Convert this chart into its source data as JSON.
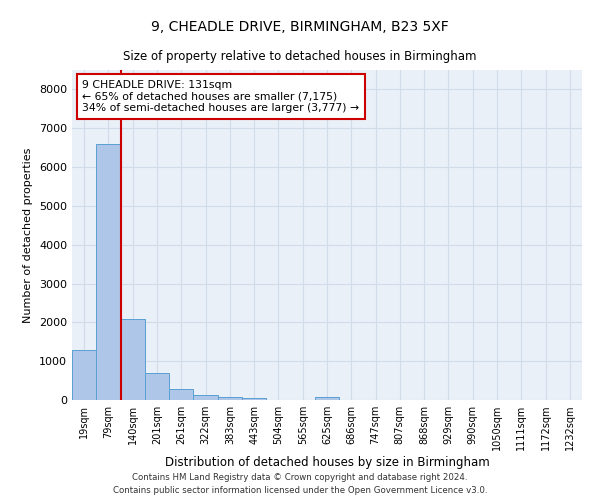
{
  "title1": "9, CHEADLE DRIVE, BIRMINGHAM, B23 5XF",
  "title2": "Size of property relative to detached houses in Birmingham",
  "xlabel": "Distribution of detached houses by size in Birmingham",
  "ylabel": "Number of detached properties",
  "footer1": "Contains HM Land Registry data © Crown copyright and database right 2024.",
  "footer2": "Contains public sector information licensed under the Open Government Licence v3.0.",
  "bar_labels": [
    "19sqm",
    "79sqm",
    "140sqm",
    "201sqm",
    "261sqm",
    "322sqm",
    "383sqm",
    "443sqm",
    "504sqm",
    "565sqm",
    "625sqm",
    "686sqm",
    "747sqm",
    "807sqm",
    "868sqm",
    "929sqm",
    "990sqm",
    "1050sqm",
    "1111sqm",
    "1172sqm",
    "1232sqm"
  ],
  "bar_values": [
    1300,
    6600,
    2080,
    700,
    290,
    130,
    90,
    60,
    0,
    0,
    70,
    0,
    0,
    0,
    0,
    0,
    0,
    0,
    0,
    0,
    0
  ],
  "bar_color": "#aec6e8",
  "bar_edge_color": "#5a9fd4",
  "grid_color": "#d0dce8",
  "background_color": "#eaf0f8",
  "property_label": "9 CHEADLE DRIVE: 131sqm",
  "annotation_line1": "← 65% of detached houses are smaller (7,175)",
  "annotation_line2": "34% of semi-detached houses are larger (3,777) →",
  "annotation_box_color": "#ffffff",
  "annotation_box_edge": "#cc0000",
  "vline_color": "#cc0000",
  "vline_x": 1.5,
  "ylim": [
    0,
    8500
  ],
  "yticks": [
    0,
    1000,
    2000,
    3000,
    4000,
    5000,
    6000,
    7000,
    8000
  ]
}
